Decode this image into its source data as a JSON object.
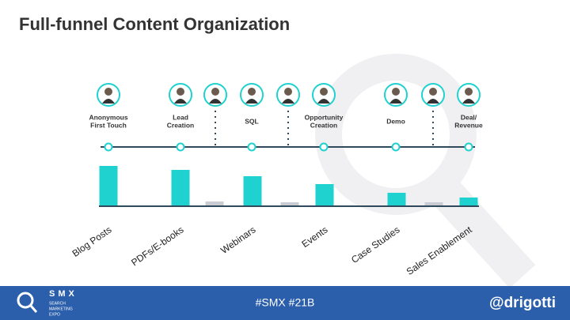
{
  "header": {
    "title": "Full-funnel Content Organization"
  },
  "stages": [
    [
      "Anonymous",
      "First Touch"
    ],
    [
      "Lead",
      "Creation"
    ],
    [
      "SQL"
    ],
    [
      "Opportunity",
      "Creation"
    ],
    [
      "Demo"
    ],
    [
      "Deal/",
      "Revenue"
    ]
  ],
  "chart_data": {
    "type": "bar",
    "categories": [
      "Blog Posts",
      "PDFs/E-books",
      null,
      "Webinars",
      null,
      "Events",
      "Case Studies",
      null,
      "Sales Enablement"
    ],
    "values": [
      50,
      45,
      5,
      37,
      4,
      27,
      16,
      4,
      10
    ],
    "colors": [
      "#1fd1cf",
      "#1fd1cf",
      "#c9ccd3",
      "#1fd1cf",
      "#c9ccd3",
      "#1fd1cf",
      "#1fd1cf",
      "#c9ccd3",
      "#1fd1cf"
    ]
  },
  "footer": {
    "logo": "SMX",
    "logo_sub": [
      "SEARCH",
      "MARKETING",
      "EXPO"
    ],
    "hashtag": "#SMX #21B",
    "handle": "@drigotti"
  }
}
